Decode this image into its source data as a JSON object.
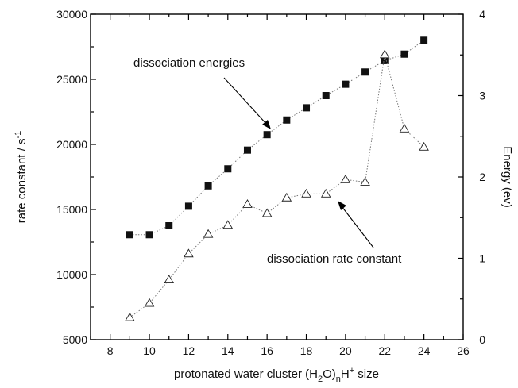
{
  "chart_data": {
    "type": "line",
    "x_axis": {
      "label_main": "protonated water cluster (H",
      "label_sub1": "2",
      "label_mid": "O)",
      "label_sub2": "n",
      "label_mid2": "H",
      "label_sup": "+",
      "label_end": " size",
      "range": [
        7,
        26
      ],
      "ticks": [
        8,
        10,
        12,
        14,
        16,
        18,
        20,
        22,
        24,
        26
      ]
    },
    "y_left": {
      "label_main": "rate constant / s",
      "label_sup": "-1",
      "range": [
        5000,
        30000
      ],
      "ticks": [
        5000,
        10000,
        15000,
        20000,
        25000,
        30000
      ]
    },
    "y_right": {
      "label": "Energy (ev)",
      "range": [
        0,
        4
      ],
      "ticks": [
        0,
        1,
        2,
        3,
        4
      ]
    },
    "series": [
      {
        "name": "dissociation energies",
        "axis": "right",
        "marker": "filled-square",
        "x": [
          9,
          10,
          11,
          12,
          13,
          14,
          15,
          16,
          17,
          18,
          19,
          20,
          21,
          22,
          23,
          24
        ],
        "y": [
          1.29,
          1.29,
          1.4,
          1.64,
          1.89,
          2.1,
          2.33,
          2.52,
          2.7,
          2.85,
          3.0,
          3.14,
          3.29,
          3.43,
          3.51,
          3.68
        ]
      },
      {
        "name": "dissociation rate constant",
        "axis": "left",
        "marker": "open-triangle",
        "x": [
          9,
          10,
          11,
          12,
          13,
          14,
          15,
          16,
          17,
          18,
          19,
          20,
          21,
          22,
          23,
          24
        ],
        "y": [
          6700,
          7800,
          9600,
          11600,
          13100,
          13800,
          15400,
          14700,
          15900,
          16200,
          16200,
          17300,
          17100,
          26900,
          21200,
          19800
        ]
      }
    ],
    "grid": false,
    "legend": "none (inline annotations)"
  }
}
